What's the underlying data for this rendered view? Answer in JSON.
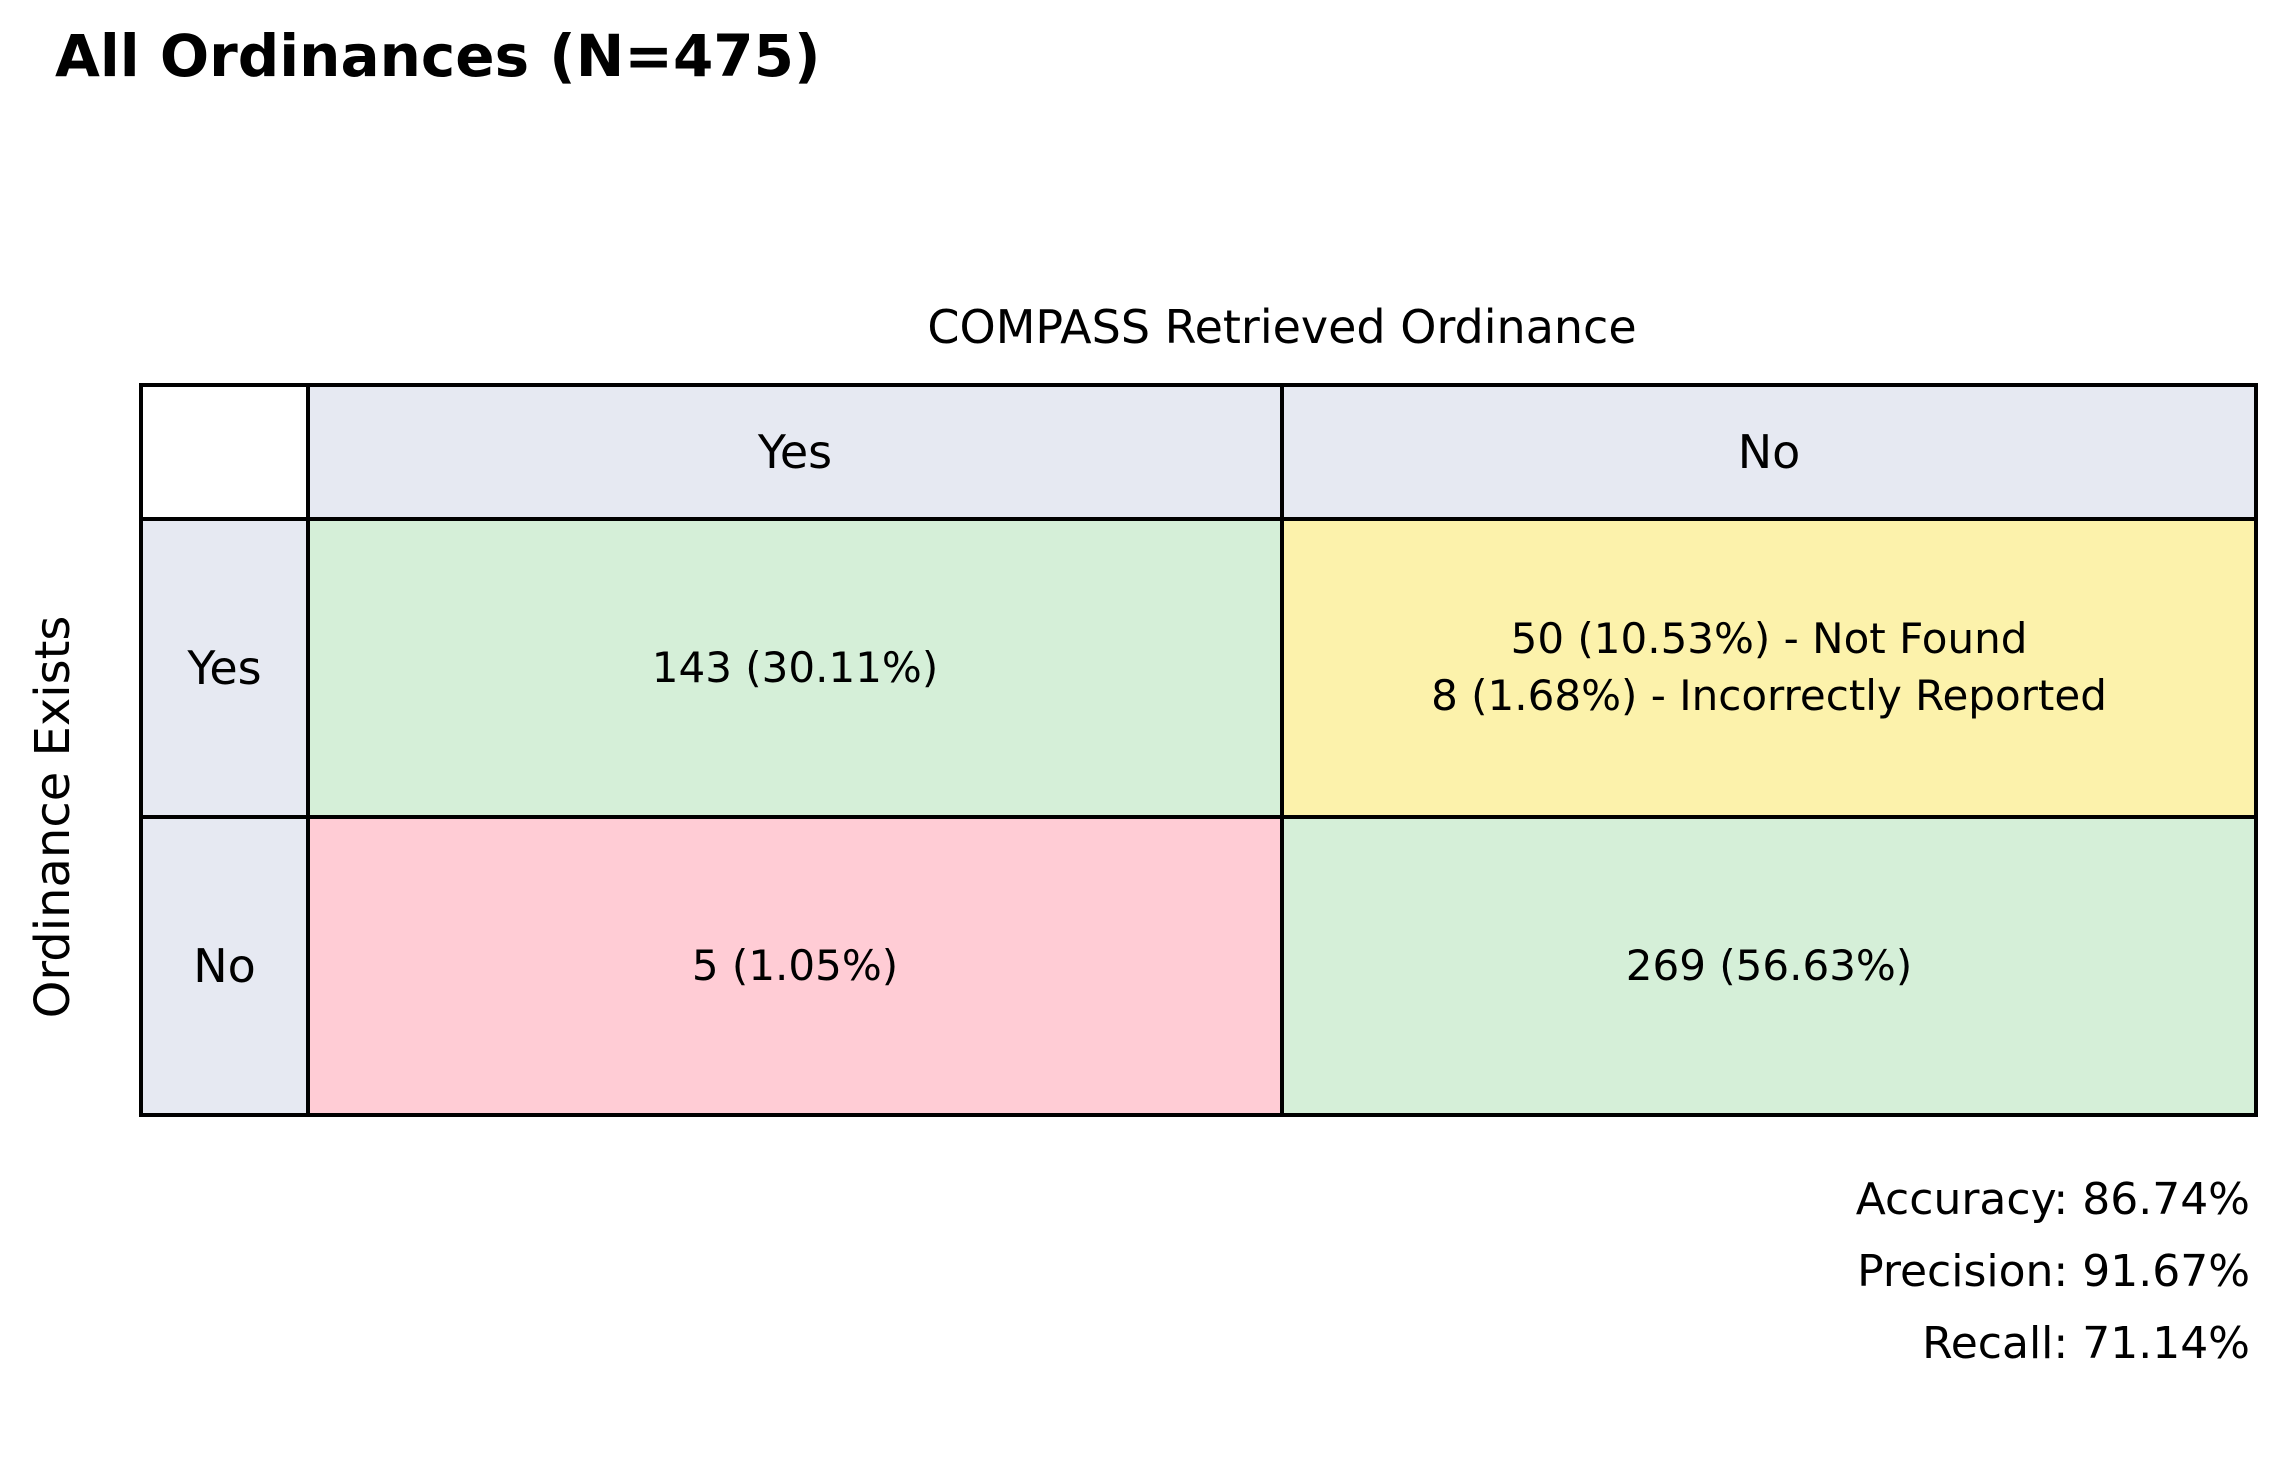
{
  "title": "All Ordinances (N=475)",
  "matrix": {
    "column_axis_title": "COMPASS Retrieved Ordinance",
    "row_axis_title": "Ordinance Exists",
    "column_headers": [
      "Yes",
      "No"
    ],
    "row_headers": [
      "Yes",
      "No"
    ],
    "cells": {
      "true_positive": {
        "label": "143 (30.11%)"
      },
      "false_negative": {
        "lines": [
          "50 (10.53%) - Not Found",
          "8 (1.68%) - Incorrectly Reported"
        ]
      },
      "false_positive": {
        "label": "5 (1.05%)"
      },
      "true_negative": {
        "label": "269 (56.63%)"
      }
    }
  },
  "metrics": {
    "accuracy_label": "Accuracy: 86.74%",
    "precision_label": "Precision: 91.67%",
    "recall_label": "Recall: 71.14%"
  },
  "colors": {
    "header_bg": "#e6e9f2",
    "match_green": "#d5efd8",
    "miss_yellow": "#fcf2ab",
    "false_positive_pink": "#ffccd5",
    "border": "#000000",
    "background": "#ffffff",
    "text": "#000000"
  },
  "chart_data": {
    "type": "heatmap",
    "title": "All Ordinances (N=475)",
    "total_n": 475,
    "x_axis_label": "COMPASS Retrieved Ordinance",
    "y_axis_label": "Ordinance Exists",
    "columns": [
      "Yes",
      "No"
    ],
    "rows": [
      "Yes",
      "No"
    ],
    "cells": [
      {
        "row": "Yes",
        "col": "Yes",
        "count": 143,
        "percent": 30.11,
        "display": "143 (30.11%)",
        "color": "#d5efd8"
      },
      {
        "row": "Yes",
        "col": "No",
        "display": "50 (10.53%) - Not Found\n8 (1.68%) - Incorrectly Reported",
        "breakdown": [
          {
            "count": 50,
            "percent": 10.53,
            "reason": "Not Found"
          },
          {
            "count": 8,
            "percent": 1.68,
            "reason": "Incorrectly Reported"
          }
        ],
        "color": "#fcf2ab"
      },
      {
        "row": "No",
        "col": "Yes",
        "count": 5,
        "percent": 1.05,
        "display": "5 (1.05%)",
        "color": "#ffccd5"
      },
      {
        "row": "No",
        "col": "No",
        "count": 269,
        "percent": 56.63,
        "display": "269 (56.63%)",
        "color": "#d5efd8"
      }
    ],
    "metrics": {
      "accuracy": "86.74%",
      "precision": "91.67%",
      "recall": "71.14%"
    },
    "legend_position": "none",
    "grid": false
  }
}
